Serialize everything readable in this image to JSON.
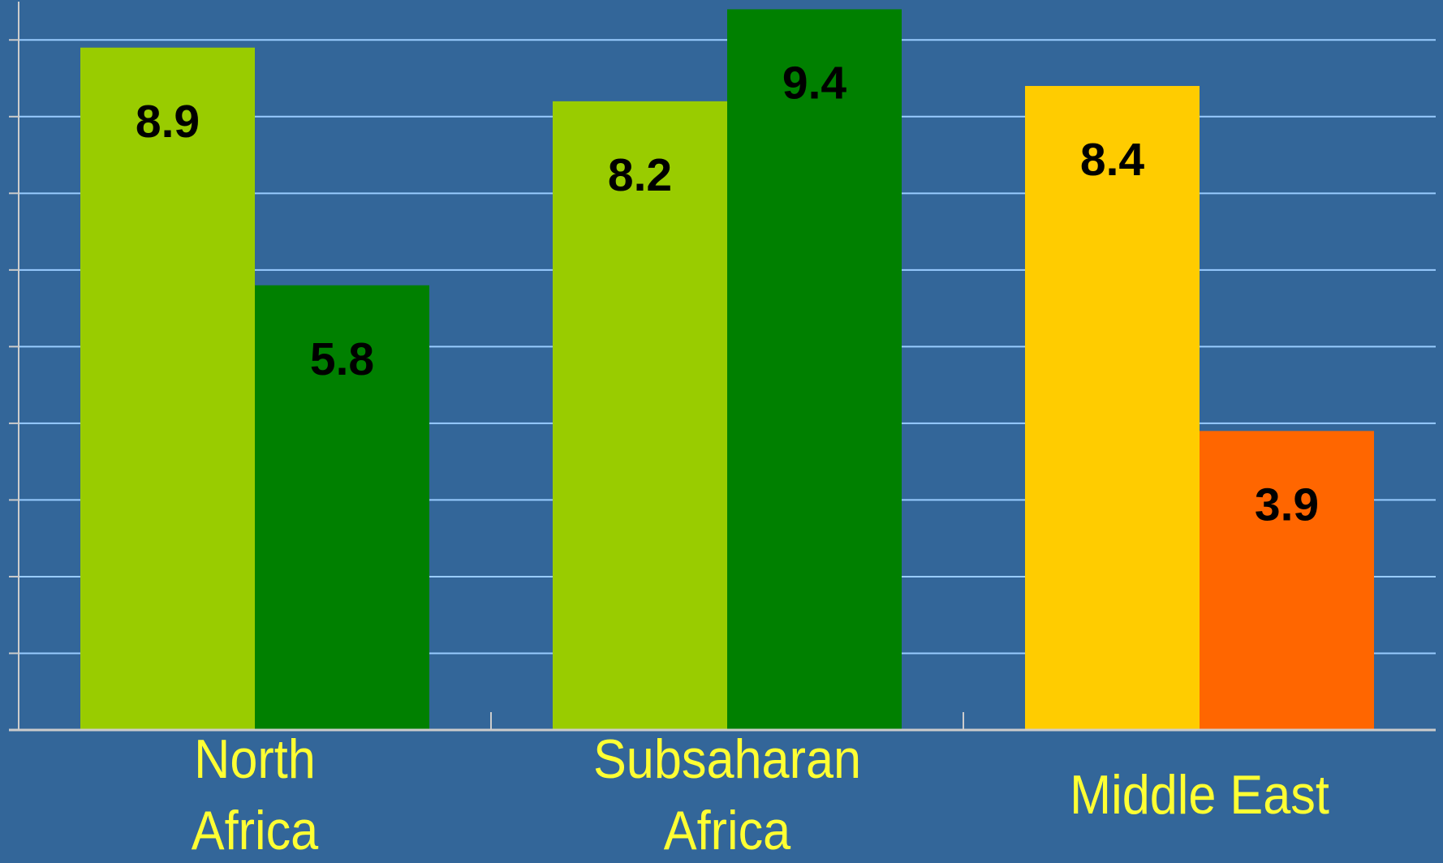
{
  "chart_data": {
    "type": "bar",
    "categories": [
      "North\nAfrica",
      "Subsaharan\nAfrica",
      "Middle East"
    ],
    "series": [
      {
        "colors": [
          "#99cc00",
          "#99cc00",
          "#ffcc00"
        ],
        "values": [
          8.9,
          8.2,
          8.4
        ]
      },
      {
        "colors": [
          "#008000",
          "#008000",
          "#ff6600"
        ],
        "values": [
          5.8,
          9.4,
          3.9
        ]
      }
    ],
    "ylim": [
      0,
      9.5
    ],
    "yticks": [
      0,
      1,
      2,
      3,
      4,
      5,
      6,
      7,
      8,
      9
    ],
    "grid": true
  }
}
